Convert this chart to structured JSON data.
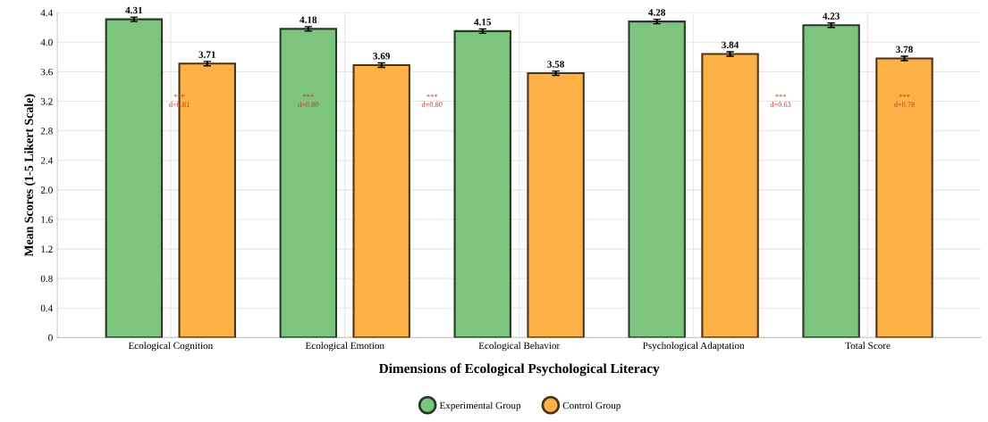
{
  "chart_data": {
    "type": "bar",
    "xlabel": "Dimensions of Ecological Psychological Literacy",
    "ylabel": "Mean Scores (1-5 Likert Scale)",
    "categories": [
      "Ecological Cognition",
      "Ecological Emotion",
      "Ecological Behavior",
      "Psychological Adaptation",
      "Total Score"
    ],
    "series": [
      {
        "name": "Experimental Group",
        "color": "#7dc47f",
        "values": [
          4.31,
          4.18,
          4.15,
          4.28,
          4.23
        ],
        "errors": [
          0.03,
          0.03,
          0.03,
          0.03,
          0.03
        ]
      },
      {
        "name": "Control Group",
        "color": "#fdb147",
        "values": [
          3.71,
          3.69,
          3.58,
          3.84,
          3.78
        ],
        "errors": [
          0.03,
          0.03,
          0.03,
          0.03,
          0.03
        ]
      }
    ],
    "data_labels": true,
    "annotations": [
      "***\nd=0.81",
      "***\nd=0.80",
      "***\nd=0.80",
      "***\nd=0.63",
      "***\nd=0.78"
    ],
    "ylim": [
      0,
      4.4
    ],
    "yticks": [
      {
        "value": 0,
        "label": "0"
      },
      0.4,
      0.8,
      1.2,
      1.6,
      {
        "value": 2,
        "label": "2.0"
      },
      2.4,
      2.8,
      3.2,
      3.6,
      {
        "value": 4,
        "label": "4.0"
      },
      4.4
    ],
    "grid": true,
    "legend": "bottom"
  }
}
